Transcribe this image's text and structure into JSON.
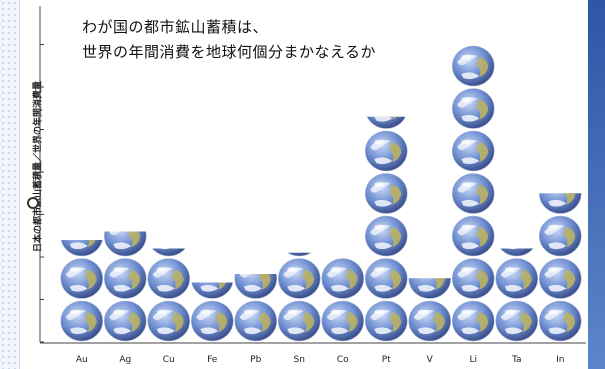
{
  "page": {
    "accent": "#2d56a6"
  },
  "header": {
    "title_line1": "わが国の都市鉱山蓄積は、",
    "title_line2": "世界の年間消費を地球何個分まかなえるか"
  },
  "axis": {
    "ylabel": "日本の都市鉱山蓄積量／世界の年間消費量"
  },
  "chart_data": {
    "type": "bar",
    "title": "わが国の都市鉱山蓄積は、世界の年間消費を地球何個分まかなえるか",
    "xlabel": "",
    "ylabel": "日本の都市鉱山蓄積量／世界の年間消費量",
    "ylim": [
      0,
      7
    ],
    "grid": false,
    "mark": "earth-globe-icon",
    "categories": [
      "Au",
      "Ag",
      "Cu",
      "Fe",
      "Pb",
      "Sn",
      "Co",
      "Pt",
      "V",
      "Li",
      "Ta",
      "In"
    ],
    "values": [
      2.4,
      2.6,
      2.2,
      1.4,
      1.6,
      2.1,
      2.0,
      5.3,
      1.5,
      7.0,
      2.2,
      3.5
    ]
  }
}
